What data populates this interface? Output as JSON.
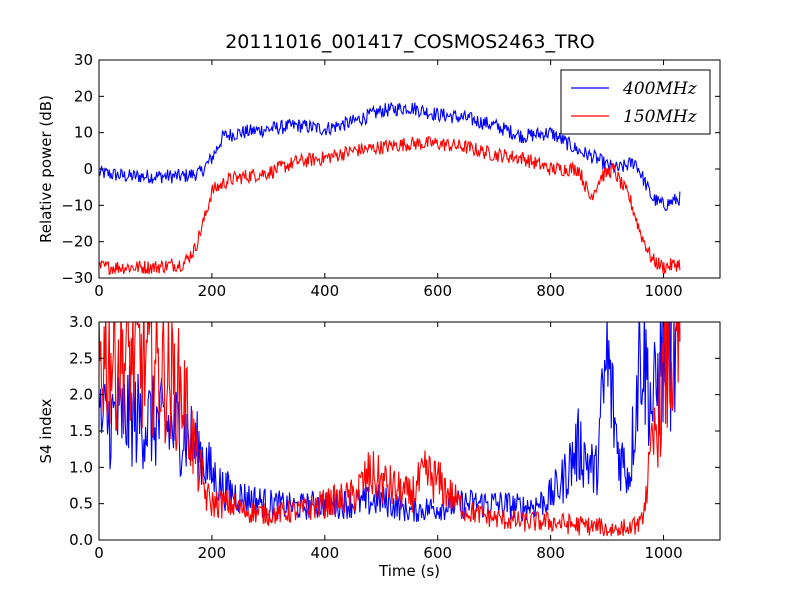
{
  "figure_title": "20111016_001417_COSMOS2463_TRO",
  "chart_data": [
    {
      "type": "line",
      "panel": "top",
      "title": "20111016_001417_COSMOS2463_TRO",
      "xlabel": "",
      "ylabel": "Relative power (dB)",
      "xlim": [
        0,
        1100
      ],
      "ylim": [
        -30,
        30
      ],
      "xticks": [
        "0",
        "200",
        "400",
        "600",
        "800",
        "1000"
      ],
      "yticks": [
        "−30",
        "−20",
        "−10",
        "0",
        "10",
        "20",
        "30"
      ],
      "legend_position": "top-right",
      "series": [
        {
          "name": "400MHz",
          "color": "#0000ff",
          "x": [
            0,
            50,
            100,
            150,
            180,
            200,
            220,
            250,
            300,
            350,
            400,
            450,
            500,
            550,
            600,
            650,
            700,
            750,
            800,
            850,
            880,
            900,
            920,
            950,
            980,
            1000,
            1030
          ],
          "y": [
            -1,
            -2,
            -2,
            -2,
            -1,
            3,
            9,
            10,
            11,
            12,
            11,
            13,
            16,
            17,
            15,
            14,
            12,
            9,
            10,
            5,
            3,
            1,
            0,
            2,
            -8,
            -10,
            -8
          ]
        },
        {
          "name": "150MHz",
          "color": "#ff0000",
          "x": [
            0,
            50,
            100,
            150,
            170,
            190,
            200,
            230,
            260,
            300,
            350,
            400,
            450,
            500,
            550,
            600,
            650,
            700,
            750,
            800,
            850,
            870,
            890,
            910,
            940,
            960,
            980,
            1000,
            1030
          ],
          "y": [
            -27,
            -27,
            -27,
            -26,
            -22,
            -12,
            -6,
            -3,
            -2,
            -1,
            2,
            3,
            5,
            6,
            7,
            7,
            6,
            4,
            3,
            0,
            0,
            -8,
            -2,
            0,
            -8,
            -18,
            -25,
            -27,
            -26
          ]
        }
      ]
    },
    {
      "type": "line",
      "panel": "bottom",
      "title": "",
      "xlabel": "Time (s)",
      "ylabel": "S4 index",
      "xlim": [
        0,
        1100
      ],
      "ylim": [
        0,
        3
      ],
      "xticks": [
        "0",
        "200",
        "400",
        "600",
        "800",
        "1000"
      ],
      "yticks": [
        "0.0",
        "0.5",
        "1.0",
        "1.5",
        "2.0",
        "2.5",
        "3.0"
      ],
      "series": [
        {
          "name": "400MHz",
          "color": "#0000ff",
          "x": [
            0,
            50,
            100,
            150,
            180,
            200,
            220,
            250,
            300,
            350,
            400,
            450,
            500,
            550,
            600,
            650,
            700,
            750,
            780,
            800,
            820,
            850,
            880,
            900,
            920,
            940,
            960,
            980,
            1000,
            1030
          ],
          "y": [
            1.6,
            1.7,
            1.6,
            1.5,
            1.2,
            0.9,
            0.7,
            0.6,
            0.5,
            0.45,
            0.5,
            0.5,
            0.55,
            0.4,
            0.45,
            0.5,
            0.5,
            0.45,
            0.5,
            0.6,
            0.8,
            1.3,
            0.9,
            2.5,
            1.2,
            0.9,
            2.8,
            1.8,
            2.5,
            2.45
          ]
        },
        {
          "name": "150MHz",
          "color": "#ff0000",
          "x": [
            0,
            50,
            100,
            150,
            170,
            190,
            200,
            230,
            260,
            300,
            350,
            400,
            450,
            480,
            500,
            550,
            580,
            600,
            650,
            700,
            750,
            800,
            850,
            900,
            940,
            960,
            980,
            1000,
            1030
          ],
          "y": [
            2.6,
            2.5,
            2.4,
            2.0,
            1.2,
            0.6,
            0.5,
            0.5,
            0.4,
            0.35,
            0.4,
            0.5,
            0.6,
            0.9,
            0.8,
            0.6,
            0.9,
            0.8,
            0.4,
            0.3,
            0.25,
            0.25,
            0.2,
            0.15,
            0.15,
            0.2,
            1.2,
            2.2,
            2.7
          ]
        }
      ]
    }
  ]
}
